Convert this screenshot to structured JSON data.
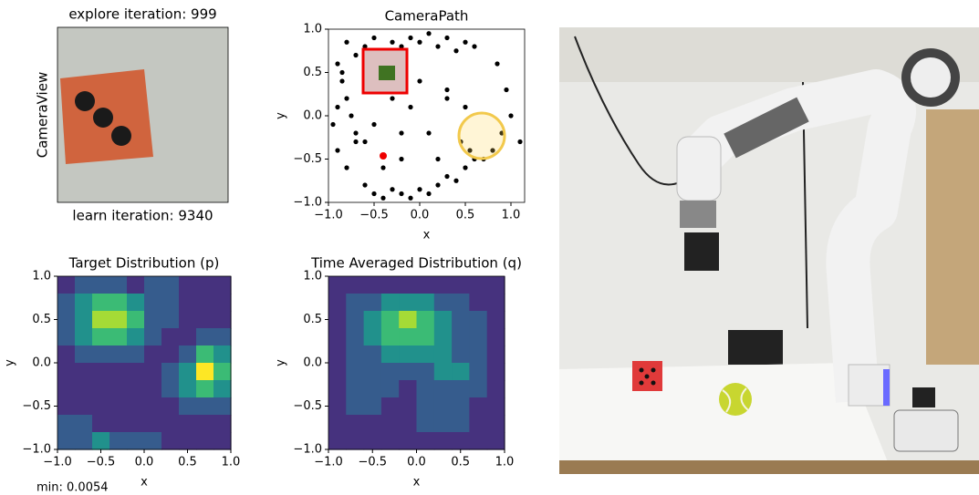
{
  "chart_data": [
    {
      "type": "image",
      "title": "explore iteration: 999",
      "ylabel": "CameraView",
      "xlabel": "learn iteration: 9340"
    },
    {
      "type": "scatter",
      "title": "CameraPath",
      "xlabel": "x",
      "ylabel": "y",
      "xlim": [
        -1.0,
        1.15
      ],
      "ylim": [
        -1.0,
        1.0
      ],
      "xticks": [
        {
          "value": -1.0,
          "label": "−1.0"
        },
        {
          "value": -0.5,
          "label": "−0.5"
        },
        {
          "value": 0.0,
          "label": "0.0"
        },
        {
          "value": 0.5,
          "label": "0.5"
        },
        {
          "value": 1.0,
          "label": "1.0"
        }
      ],
      "yticks": [
        {
          "value": -1.0,
          "label": "−1.0"
        },
        {
          "value": -0.5,
          "label": "−0.5"
        },
        {
          "value": 0.0,
          "label": "0.0"
        },
        {
          "value": 0.5,
          "label": "0.5"
        },
        {
          "value": 1.0,
          "label": "1.0"
        }
      ],
      "series": [
        {
          "color": "#000000",
          "x": [
            -0.9,
            -0.85,
            -0.8,
            -0.75,
            -0.7,
            -0.9,
            -0.8,
            -0.6,
            -0.5,
            -0.4,
            -0.3,
            -0.2,
            -0.1,
            0,
            0.1,
            0.2,
            0.3,
            0.4,
            0.5,
            0.55,
            0.6,
            0.7,
            0.8,
            0.9,
            1.1,
            1.0,
            0.95,
            0.85,
            0.6,
            0.5,
            0.4,
            0.3,
            0.2,
            0.1,
            0,
            -0.1,
            -0.2,
            -0.3,
            -0.5,
            -0.6,
            -0.7,
            -0.8,
            -0.85,
            -0.9,
            -0.95,
            -0.7,
            -0.5,
            -0.3,
            -0.1,
            0.1,
            0.3,
            0.5,
            0.45,
            0.2,
            -0.2,
            -0.4,
            -0.6,
            0,
            0.3,
            -0.2
          ],
          "values": [
            0.6,
            0.4,
            0.2,
            0,
            -0.2,
            -0.4,
            -0.6,
            -0.8,
            -0.9,
            -0.95,
            -0.85,
            -0.9,
            -0.95,
            -0.85,
            -0.9,
            -0.8,
            -0.7,
            -0.75,
            -0.6,
            -0.4,
            -0.5,
            -0.5,
            -0.4,
            -0.2,
            -0.3,
            0,
            0.3,
            0.6,
            0.8,
            0.85,
            0.75,
            0.9,
            0.8,
            0.95,
            0.85,
            0.9,
            0.8,
            0.85,
            0.9,
            0.8,
            0.7,
            0.85,
            0.5,
            0.1,
            -0.1,
            -0.3,
            -0.1,
            0.2,
            0.1,
            -0.2,
            0.3,
            0.1,
            -0.3,
            -0.5,
            -0.5,
            -0.6,
            -0.3,
            0.4,
            0.2,
            -0.2
          ]
        }
      ]
    },
    {
      "type": "contour",
      "title": "Target Distribution (p)",
      "xlabel": "x",
      "ylabel": "y",
      "annotation": "min: 0.0054",
      "xlim": [
        -1.0,
        1.0
      ],
      "ylim": [
        -1.0,
        1.0
      ],
      "xticks": [
        {
          "value": -1.0,
          "label": "−1.0"
        },
        {
          "value": -0.5,
          "label": "−0.5"
        },
        {
          "value": 0.0,
          "label": "0.0"
        },
        {
          "value": 0.5,
          "label": "0.5"
        },
        {
          "value": 1.0,
          "label": "1.0"
        }
      ],
      "yticks": [
        {
          "value": -1.0,
          "label": "−1.0"
        },
        {
          "value": -0.5,
          "label": "−0.5"
        },
        {
          "value": 0.0,
          "label": "0.0"
        },
        {
          "value": 0.5,
          "label": "0.5"
        },
        {
          "value": 1.0,
          "label": "1.0"
        }
      ],
      "colors": [
        "#46327e",
        "#365c8d",
        "#21918c",
        "#3bbb75",
        "#a5db36",
        "#fde725"
      ],
      "z": [
        [
          0,
          1,
          1,
          1,
          0,
          1,
          1,
          0,
          0,
          0
        ],
        [
          1,
          2,
          3,
          3,
          2,
          1,
          1,
          0,
          0,
          0
        ],
        [
          1,
          2,
          4,
          4,
          3,
          1,
          1,
          0,
          0,
          0
        ],
        [
          1,
          2,
          3,
          3,
          2,
          1,
          0,
          0,
          1,
          1
        ],
        [
          0,
          1,
          1,
          1,
          1,
          0,
          0,
          1,
          3,
          2
        ],
        [
          0,
          0,
          0,
          0,
          0,
          0,
          1,
          2,
          5,
          3
        ],
        [
          0,
          0,
          0,
          0,
          0,
          0,
          1,
          2,
          3,
          2
        ],
        [
          0,
          0,
          0,
          0,
          0,
          0,
          0,
          1,
          1,
          1
        ],
        [
          1,
          1,
          0,
          0,
          0,
          0,
          0,
          0,
          0,
          0
        ],
        [
          1,
          1,
          2,
          1,
          1,
          1,
          0,
          0,
          0,
          0
        ]
      ]
    },
    {
      "type": "contour",
      "title": "Time Averaged Distribution (q)",
      "xlabel": "x",
      "ylabel": "y",
      "xlim": [
        -1.0,
        1.0
      ],
      "ylim": [
        -1.0,
        1.0
      ],
      "xticks": [
        {
          "value": -1.0,
          "label": "−1.0"
        },
        {
          "value": -0.5,
          "label": "−0.5"
        },
        {
          "value": 0.0,
          "label": "0.0"
        },
        {
          "value": 0.5,
          "label": "0.5"
        },
        {
          "value": 1.0,
          "label": "1.0"
        }
      ],
      "yticks": [
        {
          "value": -1.0,
          "label": "−1.0"
        },
        {
          "value": -0.5,
          "label": "−0.5"
        },
        {
          "value": 0.0,
          "label": "0.0"
        },
        {
          "value": 0.5,
          "label": "0.5"
        },
        {
          "value": 1.0,
          "label": "1.0"
        }
      ],
      "colors": [
        "#46327e",
        "#365c8d",
        "#21918c",
        "#3bbb75",
        "#a5db36",
        "#fde725"
      ],
      "z": [
        [
          0,
          0,
          0,
          0,
          0,
          0,
          0,
          0,
          0,
          0
        ],
        [
          0,
          1,
          1,
          2,
          2,
          2,
          1,
          1,
          0,
          0
        ],
        [
          0,
          1,
          2,
          3,
          4,
          3,
          2,
          1,
          1,
          0
        ],
        [
          0,
          1,
          2,
          3,
          3,
          3,
          2,
          1,
          1,
          0
        ],
        [
          0,
          1,
          1,
          2,
          2,
          2,
          2,
          1,
          1,
          0
        ],
        [
          0,
          1,
          1,
          1,
          1,
          1,
          2,
          2,
          1,
          0
        ],
        [
          0,
          1,
          1,
          1,
          0,
          1,
          1,
          1,
          1,
          0
        ],
        [
          0,
          1,
          1,
          0,
          0,
          1,
          1,
          1,
          0,
          0
        ],
        [
          0,
          0,
          0,
          0,
          0,
          1,
          1,
          1,
          0,
          0
        ],
        [
          0,
          0,
          0,
          0,
          0,
          0,
          0,
          0,
          0,
          0
        ]
      ]
    }
  ]
}
